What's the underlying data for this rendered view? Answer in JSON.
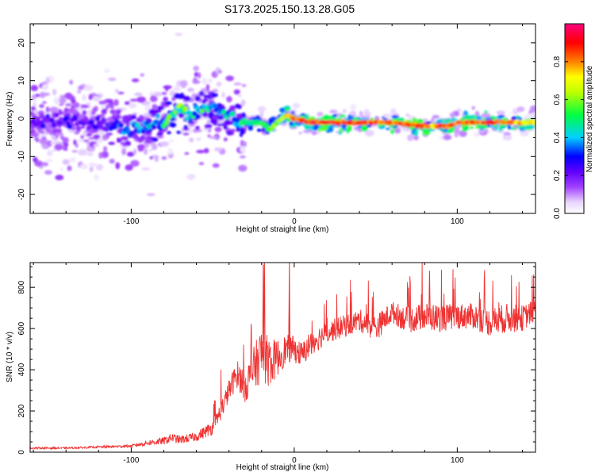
{
  "title": "S173.2025.150.13.28.G05",
  "chart_data": [
    {
      "type": "heatmap",
      "xlabel": "Height of straight line (km)",
      "ylabel": "Frequency (Hz)",
      "xlim": [
        -162,
        148
      ],
      "ylim": [
        -25,
        25
      ],
      "xticks_labeled": [
        -100,
        0,
        100
      ],
      "yticks_labeled": [
        -20,
        -10,
        0,
        10,
        20
      ],
      "colorbar": {
        "label": "Normalized spectral amplitude",
        "range": [
          0.0,
          1.0
        ],
        "ticks": [
          0.0,
          0.2,
          0.4,
          0.6,
          0.8
        ],
        "tick_labels": [
          "0.0",
          "0.2",
          "0.4",
          "0.6",
          "0.8"
        ],
        "colormap": "rainbow (white-violet-blue-cyan-green-yellow-orange-red-pink)"
      },
      "ridge": {
        "description": "frequency of strongest spectral amplitude vs height",
        "x": [
          -120,
          -100,
          -90,
          -80,
          -75,
          -70,
          -65,
          -60,
          -50,
          -40,
          -35,
          -30,
          -25,
          -20,
          -15,
          -10,
          -5,
          0,
          10,
          20,
          30,
          40,
          50,
          60,
          70,
          80,
          85,
          90,
          95,
          100,
          110,
          120,
          130,
          140,
          148
        ],
        "freq": [
          -1,
          -3,
          -2,
          -1,
          1,
          3,
          1,
          2,
          3,
          1,
          -1,
          -1,
          -1,
          -1,
          -3,
          -1,
          1,
          0,
          -1,
          -1,
          -1,
          -1,
          -1,
          -1,
          -1.5,
          -2,
          -2,
          -2,
          -2,
          -1,
          -1,
          -1,
          -1,
          -1,
          -1
        ],
        "amplitude": [
          0.25,
          0.35,
          0.4,
          0.45,
          0.55,
          0.6,
          0.5,
          0.5,
          0.45,
          0.4,
          0.45,
          0.5,
          0.5,
          0.55,
          0.6,
          0.65,
          0.75,
          0.9,
          0.95,
          0.92,
          0.9,
          0.88,
          0.9,
          0.85,
          0.9,
          0.88,
          0.8,
          0.9,
          0.85,
          0.88,
          0.9,
          0.9,
          0.85,
          0.8,
          0.75
        ]
      }
    },
    {
      "type": "line",
      "xlabel": "Height of straight line (km)",
      "ylabel": "SNR (10 * v/v)",
      "xlim": [
        -162,
        148
      ],
      "ylim": [
        0,
        920
      ],
      "xticks_labeled": [
        -100,
        0,
        100
      ],
      "yticks_labeled": [
        0,
        200,
        400,
        600,
        800
      ],
      "series": [
        {
          "color": "#ee3333",
          "x": [
            -162,
            -140,
            -120,
            -100,
            -90,
            -80,
            -75,
            -70,
            -60,
            -50,
            -45,
            -40,
            -35,
            -30,
            -25,
            -20,
            -15,
            -10,
            -5,
            0,
            5,
            10,
            20,
            30,
            40,
            50,
            60,
            70,
            80,
            90,
            100,
            110,
            120,
            130,
            140,
            148
          ],
          "y": [
            20,
            20,
            25,
            30,
            45,
            55,
            70,
            60,
            75,
            120,
            200,
            300,
            380,
            320,
            400,
            480,
            430,
            460,
            500,
            500,
            470,
            530,
            580,
            610,
            640,
            600,
            680,
            640,
            660,
            650,
            660,
            660,
            630,
            650,
            650,
            690
          ],
          "spike_envelope": [
            10,
            10,
            12,
            15,
            30,
            40,
            50,
            45,
            50,
            80,
            100,
            120,
            150,
            180,
            240,
            300,
            260,
            200,
            160,
            140,
            140,
            140,
            120,
            120,
            120,
            140,
            120,
            140,
            150,
            150,
            140,
            140,
            150,
            160,
            140,
            120
          ]
        }
      ],
      "annotations": {
        "spikes": [
          {
            "x": -19,
            "y": 910
          },
          {
            "x": -3,
            "y": 920
          },
          {
            "x": -3,
            "y": 760
          },
          {
            "x": 83,
            "y": 880
          }
        ]
      }
    }
  ]
}
